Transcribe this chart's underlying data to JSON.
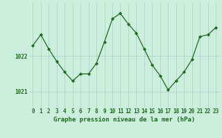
{
  "hours": [
    0,
    1,
    2,
    3,
    4,
    5,
    6,
    7,
    8,
    9,
    10,
    11,
    12,
    13,
    14,
    15,
    16,
    17,
    18,
    19,
    20,
    21,
    22,
    23
  ],
  "pressure": [
    1022.3,
    1022.6,
    1022.2,
    1021.85,
    1021.55,
    1021.3,
    1021.5,
    1021.5,
    1021.8,
    1022.4,
    1023.05,
    1023.2,
    1022.9,
    1022.65,
    1022.2,
    1021.75,
    1021.45,
    1021.05,
    1021.3,
    1021.55,
    1021.9,
    1022.55,
    1022.6,
    1022.8
  ],
  "line_color": "#1a6b1a",
  "marker_color": "#1a6b1a",
  "bg_color": "#cceedd",
  "grid_color": "#aacccc",
  "axis_label_color": "#1a6b1a",
  "tick_label_color": "#1a6b1a",
  "ylabel_ticks": [
    1021,
    1022
  ],
  "ylim": [
    1020.55,
    1023.5
  ],
  "xlim": [
    -0.5,
    23.5
  ],
  "xlabel": "Graphe pression niveau de la mer (hPa)",
  "font_size_xlabel": 6.5,
  "font_size_ticks": 5.5,
  "linewidth": 0.9,
  "markersize": 2.2
}
